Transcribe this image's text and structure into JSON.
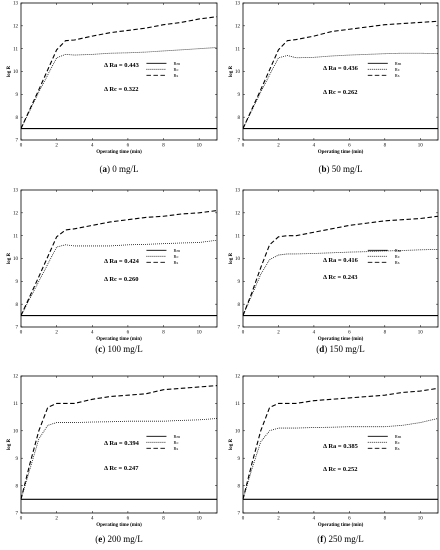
{
  "figure": {
    "panels": [
      {
        "caption_letter": "a",
        "caption_text": "0 mg/L"
      },
      {
        "caption_letter": "b",
        "caption_text": "50 mg/L"
      },
      {
        "caption_letter": "c",
        "caption_text": "100 mg/L"
      },
      {
        "caption_letter": "d",
        "caption_text": "150 mg/L"
      },
      {
        "caption_letter": "e",
        "caption_text": "200 mg/L"
      },
      {
        "caption_letter": "f",
        "caption_text": "250 mg/L"
      }
    ]
  },
  "chart_data": [
    {
      "type": "line",
      "title": "",
      "xlabel": "Operating time (min)",
      "ylabel": "log R",
      "xlim": [
        0,
        11
      ],
      "ylim": [
        7,
        13
      ],
      "xticks": [
        0,
        2,
        4,
        6,
        8,
        10
      ],
      "yticks": [
        7,
        8,
        9,
        10,
        11,
        12,
        13
      ],
      "legend": [
        "Rm",
        "Rc",
        "Rs"
      ],
      "legend_position": "right-middle",
      "annotations": [
        "Δ Ra = 0.443",
        "Δ Rc = 0.322"
      ],
      "series": [
        {
          "name": "Rm",
          "style": "solid",
          "x": [
            0,
            11
          ],
          "y": [
            7.5,
            7.5
          ]
        },
        {
          "name": "Rc",
          "style": "dotted",
          "x": [
            0,
            1,
            2,
            2.5,
            3,
            4,
            5,
            6,
            7,
            8,
            9,
            10,
            11
          ],
          "y": [
            7.5,
            9.1,
            10.6,
            10.75,
            10.72,
            10.75,
            10.8,
            10.82,
            10.85,
            10.9,
            10.95,
            11.0,
            11.05
          ]
        },
        {
          "name": "Rs",
          "style": "dashed",
          "x": [
            0,
            1,
            2,
            2.5,
            3,
            4,
            5,
            6,
            7,
            8,
            9,
            10,
            11
          ],
          "y": [
            7.5,
            9.2,
            10.95,
            11.35,
            11.38,
            11.55,
            11.7,
            11.8,
            11.9,
            12.05,
            12.15,
            12.3,
            12.4
          ]
        }
      ]
    },
    {
      "type": "line",
      "title": "",
      "xlabel": "Operating time (min)",
      "ylabel": "log R",
      "xlim": [
        0,
        11
      ],
      "ylim": [
        7,
        13
      ],
      "xticks": [
        0,
        2,
        4,
        6,
        8,
        10
      ],
      "yticks": [
        7,
        8,
        9,
        10,
        11,
        12,
        13
      ],
      "legend": [
        "Rm",
        "Rc",
        "Rs"
      ],
      "legend_position": "right-middle",
      "annotations": [
        "Δ Ra = 0.436",
        "Δ Rc = 0.262"
      ],
      "series": [
        {
          "name": "Rm",
          "style": "solid",
          "x": [
            0,
            11
          ],
          "y": [
            7.5,
            7.5
          ]
        },
        {
          "name": "Rc",
          "style": "dotted",
          "x": [
            0,
            1,
            2,
            2.5,
            3,
            4,
            5,
            6,
            7,
            8,
            9,
            10,
            11
          ],
          "y": [
            7.5,
            9.1,
            10.6,
            10.7,
            10.6,
            10.62,
            10.68,
            10.72,
            10.75,
            10.78,
            10.8,
            10.8,
            10.78
          ]
        },
        {
          "name": "Rs",
          "style": "dashed",
          "x": [
            0,
            1,
            2,
            2.5,
            3,
            4,
            5,
            6,
            7,
            8,
            9,
            10,
            11
          ],
          "y": [
            7.5,
            9.2,
            10.95,
            11.35,
            11.4,
            11.55,
            11.75,
            11.85,
            11.95,
            12.05,
            12.1,
            12.15,
            12.2
          ]
        }
      ]
    },
    {
      "type": "line",
      "title": "",
      "xlabel": "Operating time (min)",
      "ylabel": "log R",
      "xlim": [
        0,
        11
      ],
      "ylim": [
        7,
        13
      ],
      "xticks": [
        0,
        2,
        4,
        6,
        8,
        10
      ],
      "yticks": [
        7,
        8,
        9,
        10,
        11,
        12,
        13
      ],
      "legend": [
        "Rm",
        "Rc",
        "Rs"
      ],
      "legend_position": "right-middle",
      "annotations": [
        "Δ Ra = 0.424",
        "Δ Rc = 0.260"
      ],
      "series": [
        {
          "name": "Rm",
          "style": "solid",
          "x": [
            0,
            11
          ],
          "y": [
            7.5,
            7.5
          ]
        },
        {
          "name": "Rc",
          "style": "dotted",
          "x": [
            0,
            1,
            2,
            2.5,
            3,
            4,
            5,
            6,
            7,
            8,
            9,
            10,
            11
          ],
          "y": [
            7.5,
            9.0,
            10.5,
            10.6,
            10.55,
            10.55,
            10.55,
            10.6,
            10.62,
            10.65,
            10.68,
            10.7,
            10.8
          ]
        },
        {
          "name": "Rs",
          "style": "dashed",
          "x": [
            0,
            1,
            2,
            2.5,
            3,
            4,
            5,
            6,
            7,
            8,
            9,
            10,
            11
          ],
          "y": [
            7.5,
            9.2,
            10.95,
            11.25,
            11.3,
            11.45,
            11.6,
            11.7,
            11.8,
            11.85,
            11.95,
            12.0,
            12.1
          ]
        }
      ]
    },
    {
      "type": "line",
      "title": "",
      "xlabel": "Operating time (min)",
      "ylabel": "log R",
      "xlim": [
        0,
        11
      ],
      "ylim": [
        7,
        13
      ],
      "xticks": [
        0,
        2,
        4,
        6,
        8,
        10
      ],
      "yticks": [
        7,
        8,
        9,
        10,
        11,
        12,
        13
      ],
      "legend": [
        "Rm",
        "Rc",
        "Rs"
      ],
      "legend_position": "right-middle",
      "annotations": [
        "Δ Ra = 0.416",
        "Δ Rc = 0.243"
      ],
      "series": [
        {
          "name": "Rm",
          "style": "solid",
          "x": [
            0,
            11
          ],
          "y": [
            7.5,
            7.5
          ]
        },
        {
          "name": "Rc",
          "style": "dotted",
          "x": [
            0,
            0.5,
            1,
            1.5,
            2,
            2.5,
            3,
            4,
            5,
            6,
            7,
            8,
            9,
            10,
            11
          ],
          "y": [
            7.5,
            8.4,
            9.3,
            9.95,
            10.15,
            10.2,
            10.2,
            10.22,
            10.25,
            10.28,
            10.3,
            10.33,
            10.35,
            10.38,
            10.4
          ]
        },
        {
          "name": "Rs",
          "style": "dashed",
          "x": [
            0,
            0.5,
            1,
            1.5,
            2,
            2.5,
            3,
            4,
            5,
            6,
            7,
            8,
            9,
            10,
            11
          ],
          "y": [
            7.5,
            8.5,
            9.6,
            10.6,
            10.95,
            11.0,
            11.0,
            11.15,
            11.3,
            11.45,
            11.55,
            11.65,
            11.7,
            11.75,
            11.85
          ]
        }
      ]
    },
    {
      "type": "line",
      "title": "",
      "xlabel": "Operating time (min)",
      "ylabel": "log R",
      "xlim": [
        0,
        11
      ],
      "ylim": [
        7,
        12
      ],
      "xticks": [
        0,
        2,
        4,
        6,
        8,
        10
      ],
      "yticks": [
        7,
        8,
        9,
        10,
        11,
        12
      ],
      "legend": [
        "Rm",
        "Rc",
        "Rs"
      ],
      "legend_position": "right-middle",
      "annotations": [
        "Δ Ra = 0.394",
        "Δ Rc = 0.247"
      ],
      "series": [
        {
          "name": "Rm",
          "style": "solid",
          "x": [
            0,
            11
          ],
          "y": [
            7.5,
            7.5
          ]
        },
        {
          "name": "Rc",
          "style": "dotted",
          "x": [
            0,
            0.5,
            1,
            1.5,
            2,
            3,
            4,
            5,
            6,
            7,
            8,
            9,
            10,
            11
          ],
          "y": [
            7.5,
            8.6,
            9.7,
            10.2,
            10.3,
            10.3,
            10.32,
            10.33,
            10.35,
            10.35,
            10.35,
            10.38,
            10.4,
            10.45
          ]
        },
        {
          "name": "Rs",
          "style": "dashed",
          "x": [
            0,
            0.5,
            1,
            1.5,
            2,
            3,
            4,
            5,
            6,
            7,
            8,
            9,
            10,
            11
          ],
          "y": [
            7.5,
            8.8,
            10.0,
            10.85,
            11.0,
            11.0,
            11.15,
            11.25,
            11.3,
            11.35,
            11.5,
            11.55,
            11.6,
            11.65
          ]
        }
      ]
    },
    {
      "type": "line",
      "title": "",
      "xlabel": "Operating time (min)",
      "ylabel": "log R",
      "xlim": [
        0,
        11
      ],
      "ylim": [
        7,
        12
      ],
      "xticks": [
        0,
        2,
        4,
        6,
        8,
        10
      ],
      "yticks": [
        7,
        8,
        9,
        10,
        11,
        12
      ],
      "legend": [
        "Rm",
        "Rc",
        "Rs"
      ],
      "legend_position": "right-middle",
      "annotations": [
        "Δ Ra = 0.385",
        "Δ Rc = 0.252"
      ],
      "series": [
        {
          "name": "Rm",
          "style": "solid",
          "x": [
            0,
            11
          ],
          "y": [
            7.5,
            7.5
          ]
        },
        {
          "name": "Rc",
          "style": "dotted",
          "x": [
            0,
            0.5,
            1,
            1.5,
            2,
            3,
            4,
            5,
            6,
            7,
            8,
            9,
            10,
            11
          ],
          "y": [
            7.5,
            8.6,
            9.6,
            10.0,
            10.1,
            10.1,
            10.12,
            10.13,
            10.15,
            10.15,
            10.15,
            10.2,
            10.3,
            10.45
          ]
        },
        {
          "name": "Rs",
          "style": "dashed",
          "x": [
            0,
            0.5,
            1,
            1.5,
            2,
            3,
            4,
            5,
            6,
            7,
            8,
            9,
            10,
            11
          ],
          "y": [
            7.5,
            8.8,
            10.0,
            10.85,
            11.0,
            11.0,
            11.1,
            11.15,
            11.2,
            11.25,
            11.3,
            11.4,
            11.45,
            11.55
          ]
        }
      ]
    }
  ]
}
